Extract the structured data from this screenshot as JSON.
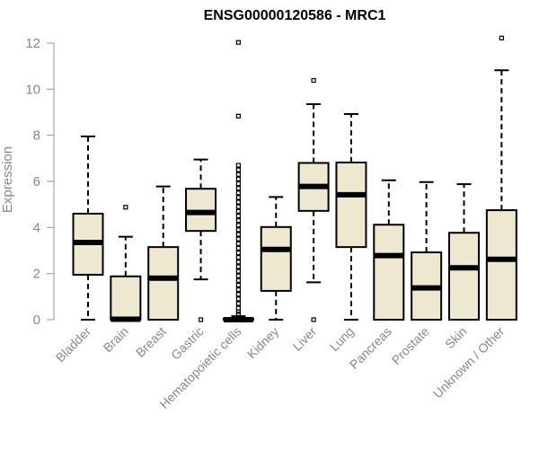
{
  "chart_data": {
    "type": "boxplot",
    "title": "ENSG00000120586 - MRC1",
    "xlabel": "",
    "ylabel": "Expression",
    "ylim": [
      0,
      12
    ],
    "yticks": [
      0,
      2,
      4,
      6,
      8,
      10,
      12
    ],
    "box_fill": "#efe8d0",
    "categories": [
      "Bladder",
      "Brain",
      "Breast",
      "Gastric",
      "Hematopoietic cells",
      "Kidney",
      "Liver",
      "Lung",
      "Pancreas",
      "Prostate",
      "Skin",
      "Unknown / Other"
    ],
    "boxes": [
      {
        "category": "Bladder",
        "min": 0,
        "q1": 1.95,
        "median": 3.35,
        "q3": 4.6,
        "max": 7.95,
        "outliers": []
      },
      {
        "category": "Brain",
        "min": 0,
        "q1": 0,
        "median": 0.02,
        "q3": 1.88,
        "max": 3.6,
        "outliers": [
          4.88
        ]
      },
      {
        "category": "Breast",
        "min": 0,
        "q1": 0,
        "median": 1.8,
        "q3": 3.15,
        "max": 5.78,
        "outliers": []
      },
      {
        "category": "Gastric",
        "min": 1.75,
        "q1": 3.85,
        "median": 4.65,
        "q3": 5.68,
        "max": 6.95,
        "outliers": [
          0
        ]
      },
      {
        "category": "Hematopoietic cells",
        "min": 0,
        "q1": 0,
        "median": 0,
        "q3": 0.05,
        "max": 0.15,
        "outliers": [
          12.03,
          8.83,
          6.7,
          6.5,
          6.3,
          6.1,
          5.9,
          5.7,
          5.5,
          5.3,
          5.1,
          4.9,
          4.7,
          4.5,
          4.3,
          4.1,
          3.9,
          3.7,
          3.5,
          3.3,
          3.1,
          2.9,
          2.7,
          2.5,
          2.3,
          2.1,
          1.9,
          1.7,
          1.5,
          1.3,
          1.1,
          0.9,
          0.7,
          0.5,
          0.35,
          0.25
        ]
      },
      {
        "category": "Kidney",
        "min": 0,
        "q1": 1.25,
        "median": 3.05,
        "q3": 4.02,
        "max": 5.32,
        "outliers": []
      },
      {
        "category": "Liver",
        "min": 1.62,
        "q1": 4.72,
        "median": 5.78,
        "q3": 6.8,
        "max": 9.35,
        "outliers": [
          10.38,
          0
        ]
      },
      {
        "category": "Lung",
        "min": 0,
        "q1": 3.15,
        "median": 5.42,
        "q3": 6.82,
        "max": 8.92,
        "outliers": []
      },
      {
        "category": "Pancreas",
        "min": 0,
        "q1": 0,
        "median": 2.78,
        "q3": 4.12,
        "max": 6.05,
        "outliers": []
      },
      {
        "category": "Prostate",
        "min": 0,
        "q1": 0,
        "median": 1.38,
        "q3": 2.92,
        "max": 5.97,
        "outliers": []
      },
      {
        "category": "Skin",
        "min": 0,
        "q1": 0,
        "median": 2.25,
        "q3": 3.77,
        "max": 5.88,
        "outliers": []
      },
      {
        "category": "Unknown / Other",
        "min": 0,
        "q1": 0,
        "median": 2.62,
        "q3": 4.75,
        "max": 10.82,
        "outliers": [
          12.22
        ]
      }
    ]
  }
}
